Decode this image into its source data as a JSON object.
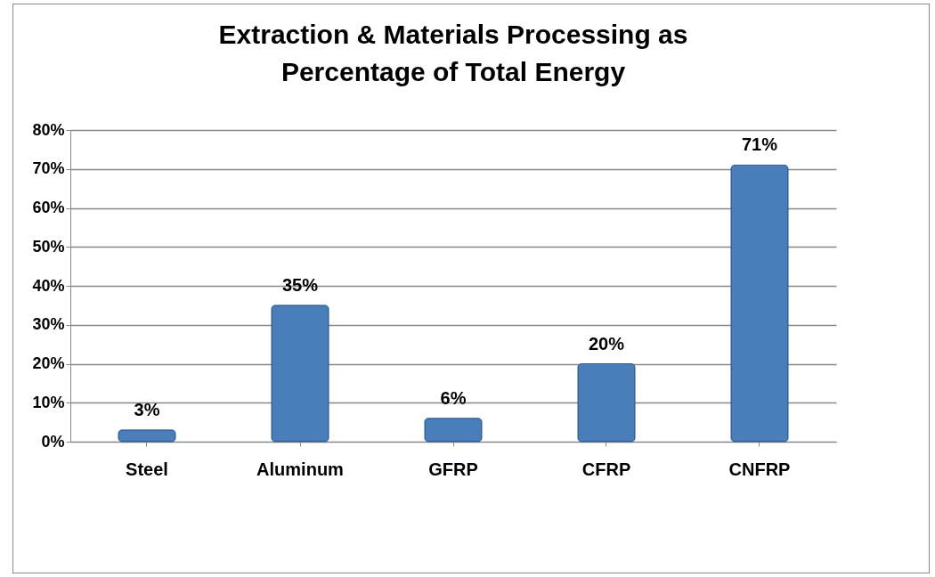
{
  "chart_data": {
    "type": "bar",
    "title": "Extraction & Materials Processing as\nPercentage of Total Energy",
    "categories": [
      "Steel",
      "Aluminum",
      "GFRP",
      "CFRP",
      "CNFRP"
    ],
    "values": [
      3,
      35,
      6,
      20,
      71
    ],
    "value_labels": [
      "3%",
      "35%",
      "6%",
      "20%",
      "71%"
    ],
    "color": "#4a7ebb",
    "ylim": [
      0,
      80
    ],
    "yticks": [
      {
        "value": 0,
        "label": "0%"
      },
      {
        "value": 10,
        "label": "10%"
      },
      {
        "value": 20,
        "label": "20%"
      },
      {
        "value": 30,
        "label": "30%"
      },
      {
        "value": 40,
        "label": "40%"
      },
      {
        "value": 50,
        "label": "50%"
      },
      {
        "value": 60,
        "label": "60%"
      },
      {
        "value": 70,
        "label": "70%"
      },
      {
        "value": 80,
        "label": "80%"
      }
    ],
    "grid": "y"
  }
}
